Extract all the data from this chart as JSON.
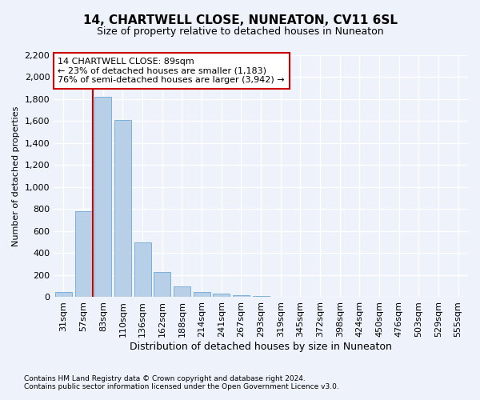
{
  "title": "14, CHARTWELL CLOSE, NUNEATON, CV11 6SL",
  "subtitle": "Size of property relative to detached houses in Nuneaton",
  "xlabel": "Distribution of detached houses by size in Nuneaton",
  "ylabel": "Number of detached properties",
  "categories": [
    "31sqm",
    "57sqm",
    "83sqm",
    "110sqm",
    "136sqm",
    "162sqm",
    "188sqm",
    "214sqm",
    "241sqm",
    "267sqm",
    "293sqm",
    "319sqm",
    "345sqm",
    "372sqm",
    "398sqm",
    "424sqm",
    "450sqm",
    "476sqm",
    "503sqm",
    "529sqm",
    "555sqm"
  ],
  "values": [
    50,
    780,
    1820,
    1610,
    500,
    230,
    100,
    50,
    30,
    20,
    10,
    0,
    0,
    0,
    0,
    0,
    0,
    0,
    0,
    0,
    0
  ],
  "bar_color": "#b8cfe8",
  "bar_edge_color": "#6fa8d4",
  "vline_bar_index": 2,
  "vline_color": "#cc0000",
  "annotation_text": "14 CHARTWELL CLOSE: 89sqm\n← 23% of detached houses are smaller (1,183)\n76% of semi-detached houses are larger (3,942) →",
  "annotation_box_edgecolor": "#cc0000",
  "ylim": [
    0,
    2200
  ],
  "yticks": [
    0,
    200,
    400,
    600,
    800,
    1000,
    1200,
    1400,
    1600,
    1800,
    2000,
    2200
  ],
  "footnote1": "Contains HM Land Registry data © Crown copyright and database right 2024.",
  "footnote2": "Contains public sector information licensed under the Open Government Licence v3.0.",
  "bg_color": "#eef2fa",
  "plot_bg_color": "#eef2fa",
  "grid_color": "#ffffff",
  "title_fontsize": 11,
  "subtitle_fontsize": 9,
  "axis_label_fontsize": 8,
  "tick_fontsize": 8,
  "annotation_fontsize": 8
}
